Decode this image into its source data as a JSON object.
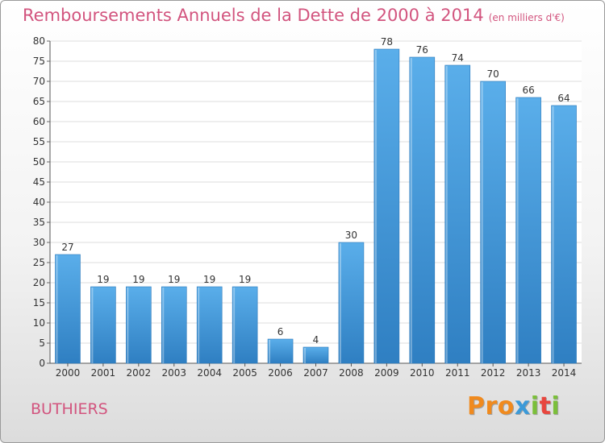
{
  "chart_data": {
    "type": "bar",
    "title": "Remboursements Annuels de la Dette de 2000 à 2014",
    "subtitle": "(en milliers d'€)",
    "categories": [
      "2000",
      "2001",
      "2002",
      "2003",
      "2004",
      "2005",
      "2006",
      "2007",
      "2008",
      "2009",
      "2010",
      "2011",
      "2012",
      "2013",
      "2014"
    ],
    "values": [
      27,
      19,
      19,
      19,
      19,
      19,
      6,
      4,
      30,
      78,
      76,
      74,
      70,
      66,
      64
    ],
    "ylim": [
      0,
      80
    ],
    "yticks": [
      0,
      5,
      10,
      15,
      20,
      25,
      30,
      35,
      40,
      45,
      50,
      55,
      60,
      65,
      70,
      75,
      80
    ],
    "grid": true,
    "data_labels": true,
    "bar_color": "#4f9fe0"
  },
  "footer": {
    "place": "BUTHIERS",
    "logo_letters": [
      "P",
      "r",
      "o",
      "x",
      "i",
      "t",
      "i"
    ]
  },
  "colors": {
    "accent": "#d2547e",
    "logo": [
      "#f08a1e",
      "#f08a1e",
      "#f08a1e",
      "#3c9ad8",
      "#7bbf3a",
      "#e8463e",
      "#7bbf3a"
    ]
  }
}
